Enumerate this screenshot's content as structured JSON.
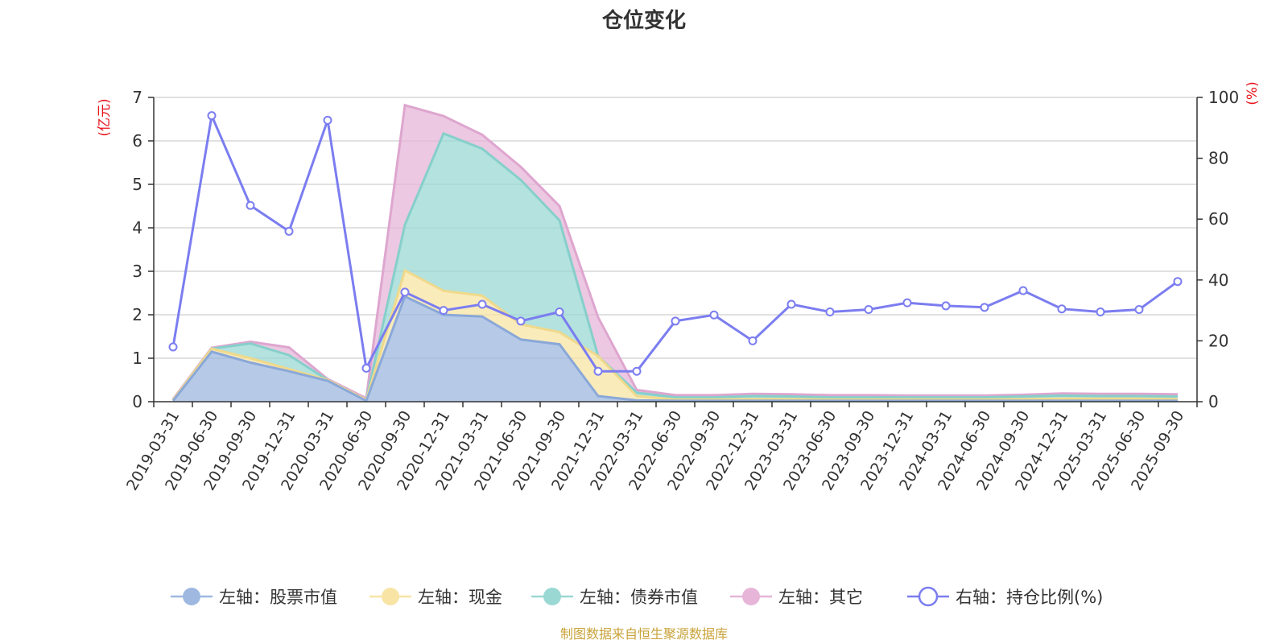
{
  "title": "仓位变化",
  "source": "制图数据来自恒生聚源数据库",
  "left_unit": "(亿元)",
  "right_unit": "(%)",
  "colors": {
    "stock": "#9eb8e0",
    "cash": "#f8e4a4",
    "bond": "#9ad8d4",
    "other": "#e6b5d8",
    "ratio": "#7b7df0"
  },
  "chart_data": {
    "type": "area",
    "title": "仓位变化",
    "categories": [
      "2019-03-31",
      "2019-06-30",
      "2019-09-30",
      "2019-12-31",
      "2020-03-31",
      "2020-06-30",
      "2020-09-30",
      "2020-12-31",
      "2021-03-31",
      "2021-06-30",
      "2021-09-30",
      "2021-12-31",
      "2022-03-31",
      "2022-06-30",
      "2022-09-30",
      "2022-12-31",
      "2023-03-31",
      "2023-06-30",
      "2023-09-30",
      "2023-12-31",
      "2024-03-31",
      "2024-06-30",
      "2024-09-30",
      "2024-12-31",
      "2025-03-31",
      "2025-06-30",
      "2025-09-30"
    ],
    "left_axis": {
      "label": "(亿元)",
      "ylim": [
        0,
        7
      ],
      "ticks": [
        0,
        1,
        2,
        3,
        4,
        5,
        6,
        7
      ]
    },
    "right_axis": {
      "label": "(%)",
      "ylim": [
        0,
        100
      ],
      "ticks": [
        0,
        20,
        40,
        60,
        80,
        100
      ]
    },
    "series": [
      {
        "name": "左轴：股票市值",
        "axis": "left",
        "stacked": true,
        "values": [
          0.02,
          1.15,
          0.9,
          0.7,
          0.48,
          0.02,
          2.42,
          2.0,
          1.96,
          1.43,
          1.32,
          0.13,
          0.03,
          0.02,
          0.02,
          0.02,
          0.02,
          0.02,
          0.02,
          0.02,
          0.02,
          0.02,
          0.02,
          0.02,
          0.02,
          0.02,
          0.02
        ]
      },
      {
        "name": "左轴：现金",
        "axis": "left",
        "stacked": true,
        "values": [
          0.02,
          0.07,
          0.1,
          0.05,
          0.02,
          0.02,
          0.6,
          0.55,
          0.48,
          0.35,
          0.28,
          0.92,
          0.1,
          0.03,
          0.03,
          0.04,
          0.04,
          0.03,
          0.03,
          0.03,
          0.03,
          0.03,
          0.04,
          0.05,
          0.05,
          0.05,
          0.04
        ]
      },
      {
        "name": "左轴：债券市值",
        "axis": "left",
        "stacked": true,
        "values": [
          0,
          0,
          0.34,
          0.32,
          0,
          0,
          1.05,
          3.62,
          3.38,
          3.32,
          2.57,
          0,
          0.08,
          0.05,
          0.05,
          0.07,
          0.06,
          0.05,
          0.05,
          0.05,
          0.05,
          0.05,
          0.06,
          0.07,
          0.06,
          0.06,
          0.06
        ]
      },
      {
        "name": "左轴：其它",
        "axis": "left",
        "stacked": true,
        "values": [
          0.02,
          0.02,
          0.04,
          0.18,
          0.02,
          0.04,
          2.75,
          0.4,
          0.32,
          0.3,
          0.33,
          0.89,
          0.06,
          0.05,
          0.05,
          0.05,
          0.05,
          0.05,
          0.05,
          0.04,
          0.04,
          0.04,
          0.04,
          0.05,
          0.05,
          0.05,
          0.05
        ]
      },
      {
        "name": "右轴：持仓比例(%)",
        "axis": "right",
        "type": "line",
        "values": [
          18,
          94,
          64.5,
          56,
          92.5,
          11,
          36,
          30,
          32,
          26.5,
          29.5,
          10,
          10,
          26.5,
          28.5,
          20,
          32,
          29.5,
          30.3,
          32.5,
          31.5,
          31,
          36.5,
          30.5,
          29.5,
          30.3,
          39.5
        ]
      }
    ]
  },
  "legend": [
    {
      "label": "左轴：股票市值",
      "color": "#9eb8e0",
      "kind": "dot"
    },
    {
      "label": "左轴：现金",
      "color": "#f8e4a4",
      "kind": "dot"
    },
    {
      "label": "左轴：债券市值",
      "color": "#9ad8d4",
      "kind": "dot"
    },
    {
      "label": "左轴：其它",
      "color": "#e6b5d8",
      "kind": "dot"
    },
    {
      "label": "右轴：持仓比例(%)",
      "color": "#7b7df0",
      "kind": "ring"
    }
  ]
}
